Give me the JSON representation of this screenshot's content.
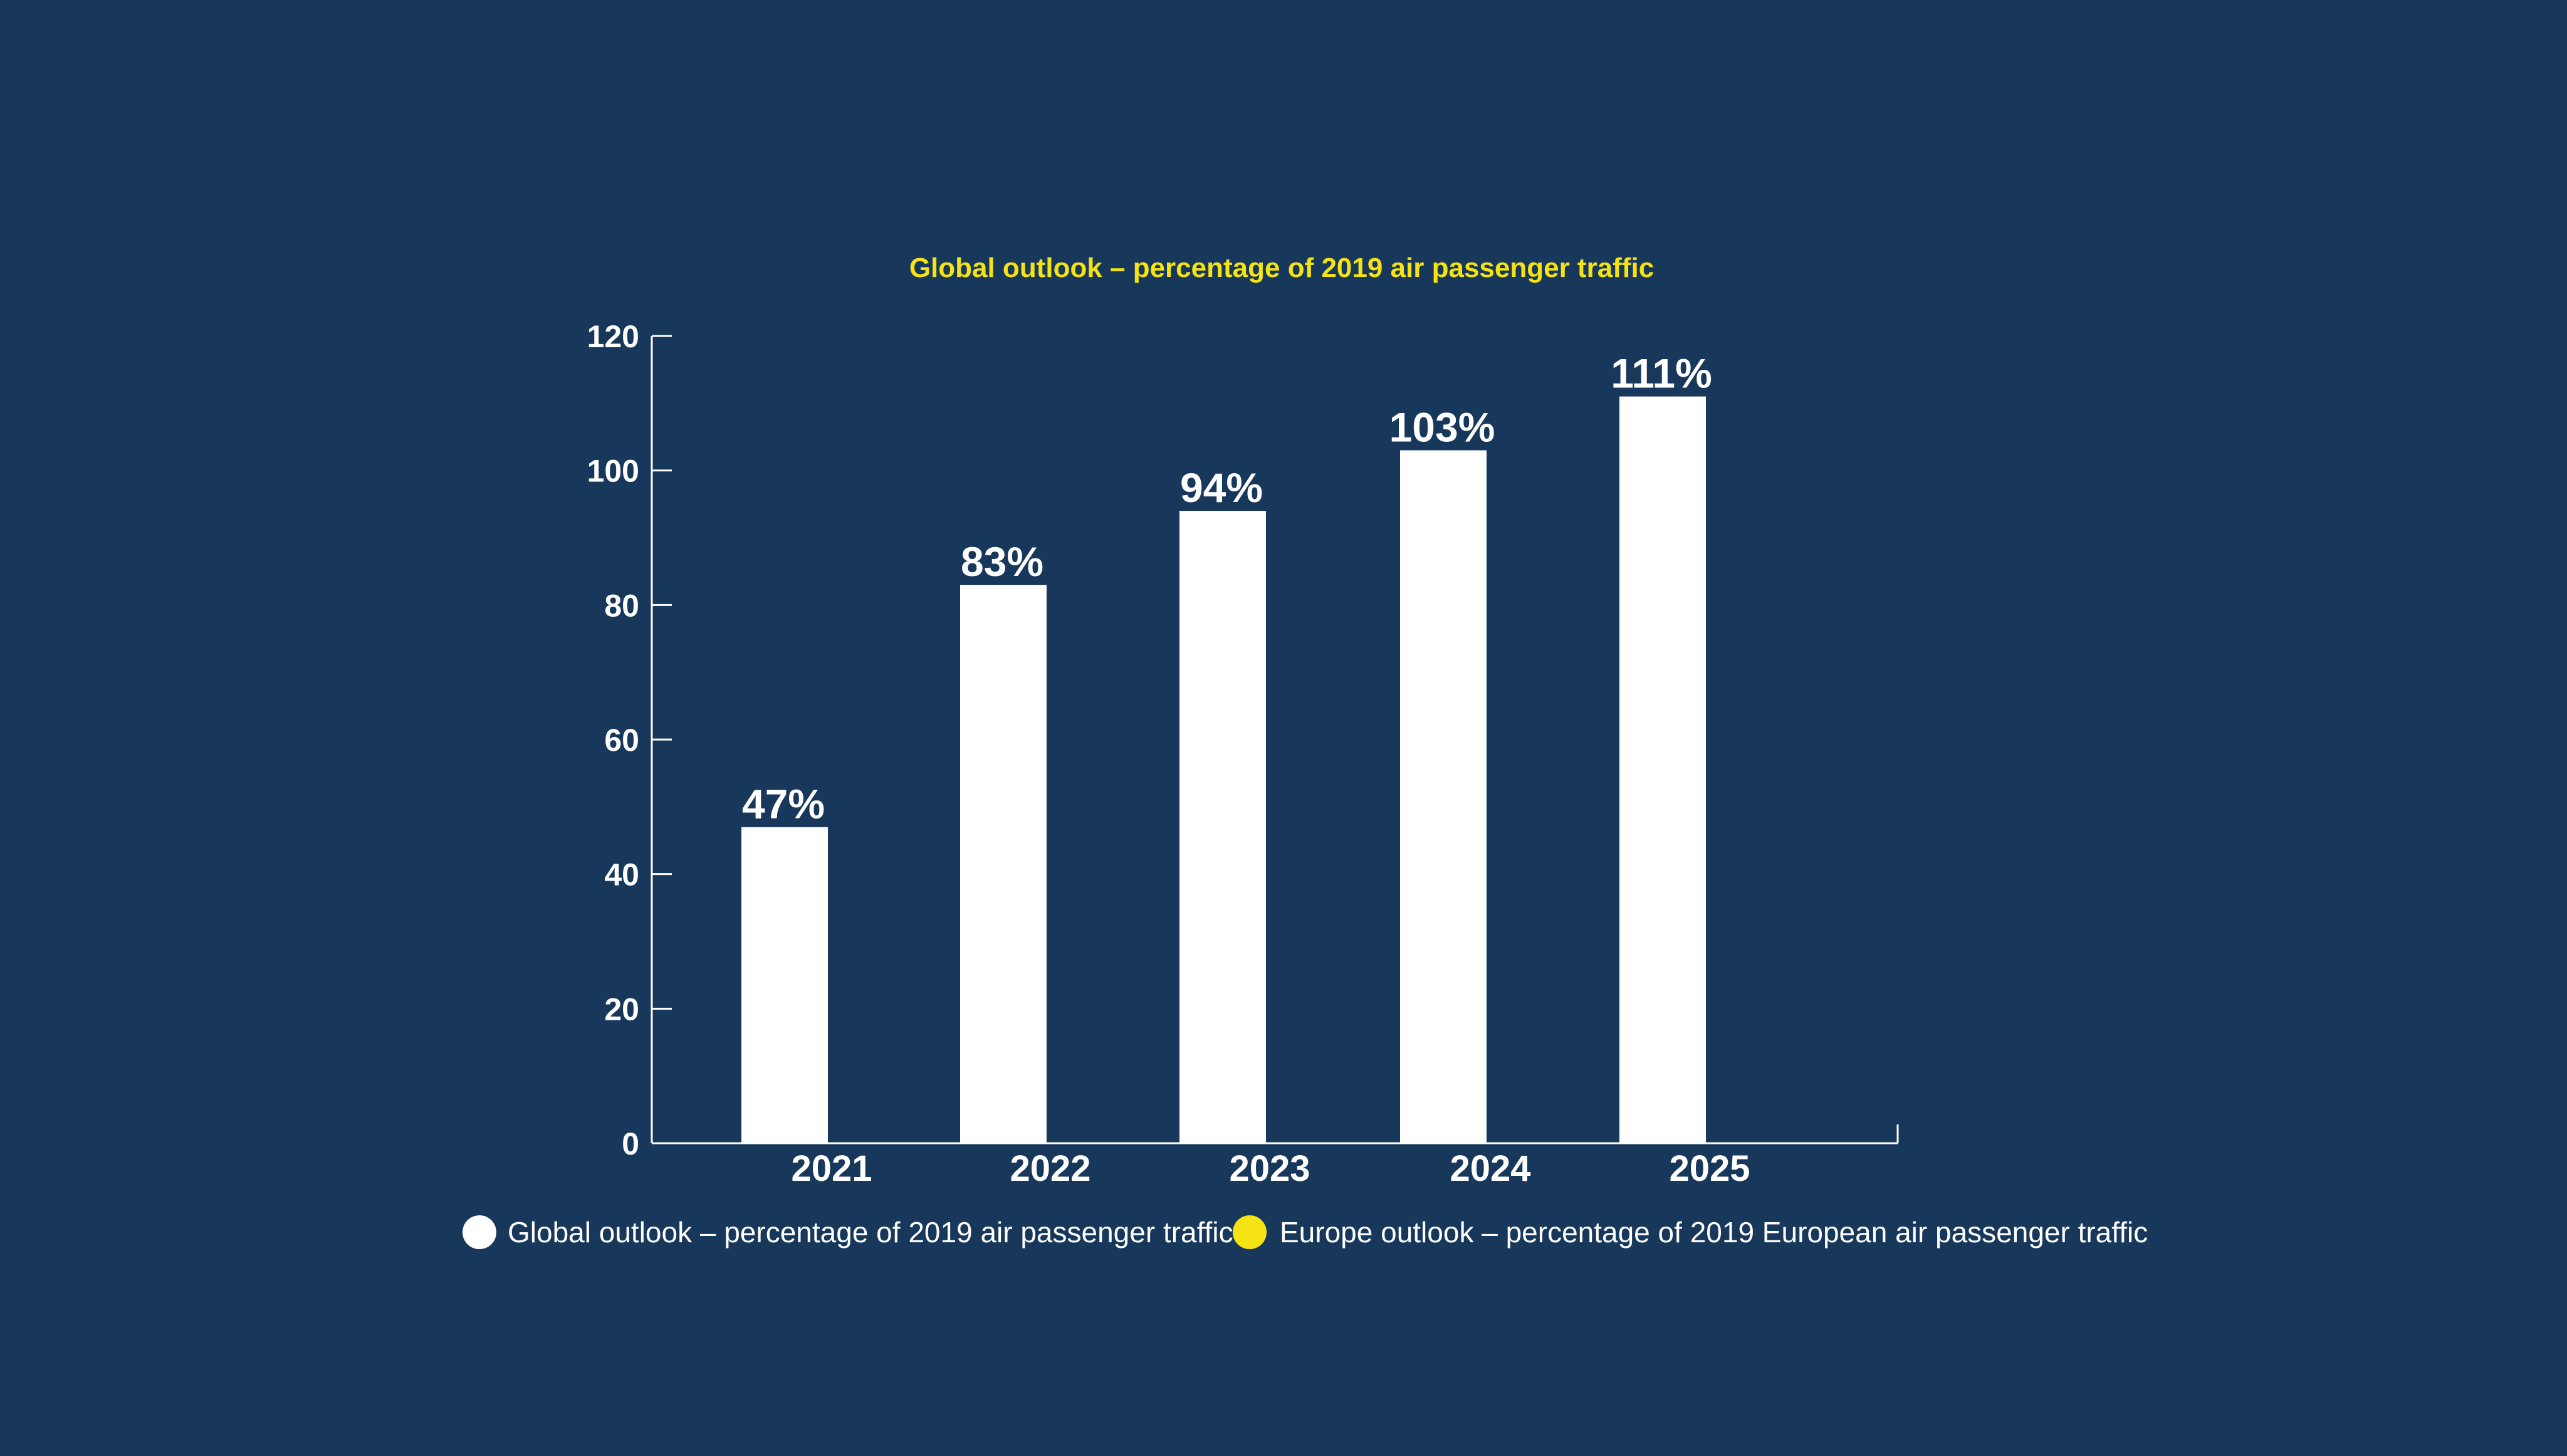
{
  "colors": {
    "background": "#17375b",
    "bar": "#ffffff",
    "axis": "#ffffff",
    "title": "#f5e314",
    "legend_global": "#ffffff",
    "legend_europe": "#f5e314"
  },
  "chart_data": {
    "type": "bar",
    "title": "Global outlook – percentage of 2019 air passenger traffic",
    "xlabel": "",
    "ylabel": "",
    "categories": [
      "2021",
      "2022",
      "2023",
      "2024",
      "2025"
    ],
    "series": [
      {
        "name": "Global outlook – percentage of 2019 air passenger traffic",
        "values": [
          47,
          83,
          94,
          103,
          111
        ],
        "labels": [
          "47%",
          "83%",
          "94%",
          "103%",
          "111%"
        ]
      }
    ],
    "ylim": [
      0,
      120
    ],
    "yticks": [
      0,
      20,
      40,
      60,
      80,
      100,
      120
    ],
    "grid": false,
    "legend": {
      "placement": "bottom",
      "entries": [
        {
          "label": "Global outlook – percentage of 2019 air passenger traffic",
          "marker": "circle"
        },
        {
          "label": "Europe outlook – percentage of 2019 European air passenger traffic",
          "marker": "circle"
        }
      ]
    }
  }
}
